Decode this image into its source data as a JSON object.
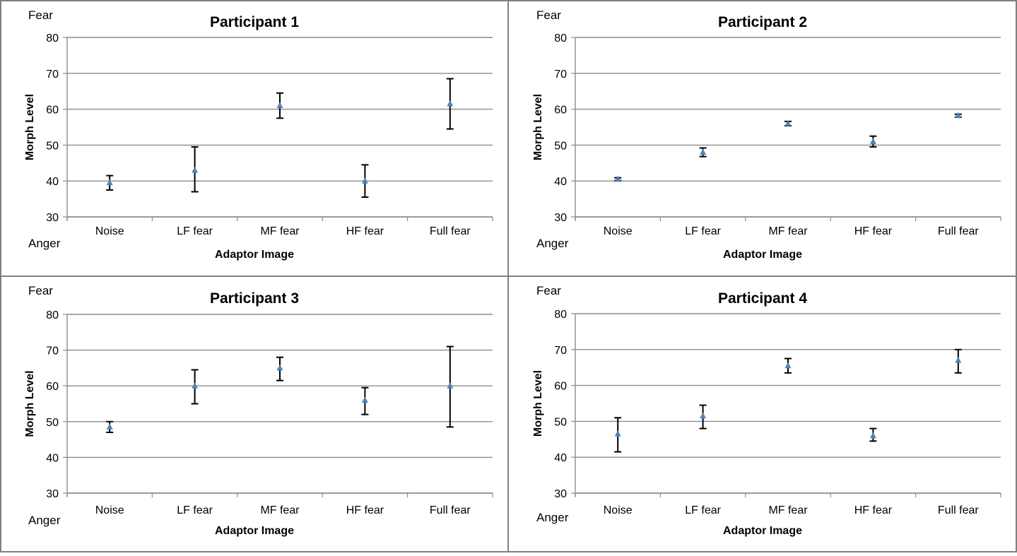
{
  "chart_data": [
    {
      "type": "scatter",
      "title": "Participant 1",
      "xlabel": "Adaptor Image",
      "ylabel": "Morph Level",
      "top_anchor": "Fear",
      "bottom_anchor": "Anger",
      "categories": [
        "Noise",
        "LF fear",
        "MF fear",
        "HF fear",
        "Full fear"
      ],
      "values": [
        39.5,
        43,
        61,
        40,
        61.5
      ],
      "err_low": [
        37.5,
        37,
        57.5,
        35.5,
        54.5
      ],
      "err_high": [
        41.5,
        49.5,
        64.5,
        44.5,
        68.5
      ],
      "ylim": [
        30,
        80
      ],
      "yticks": [
        "30",
        "40",
        "50",
        "60",
        "70",
        "80"
      ],
      "grid": true,
      "marker_color": "#4F81BD"
    },
    {
      "type": "scatter",
      "title": "Participant 2",
      "xlabel": "Adaptor Image",
      "ylabel": "Morph Level",
      "top_anchor": "Fear",
      "bottom_anchor": "Anger",
      "categories": [
        "Noise",
        "LF fear",
        "MF fear",
        "HF fear",
        "Full fear"
      ],
      "values": [
        40.5,
        48,
        56,
        51,
        58.2
      ],
      "err_low": [
        40.1,
        46.8,
        55.4,
        49.5,
        57.8
      ],
      "err_high": [
        40.9,
        49.2,
        56.6,
        52.5,
        58.6
      ],
      "ylim": [
        30,
        80
      ],
      "yticks": [
        "30",
        "40",
        "50",
        "60",
        "70",
        "80"
      ],
      "grid": true,
      "marker_color": "#4F81BD"
    },
    {
      "type": "scatter",
      "title": "Participant 3",
      "xlabel": "Adaptor Image",
      "ylabel": "Morph Level",
      "top_anchor": "Fear",
      "bottom_anchor": "Anger",
      "categories": [
        "Noise",
        "LF fear",
        "MF fear",
        "HF fear",
        "Full fear"
      ],
      "values": [
        48.5,
        60,
        65,
        56,
        60
      ],
      "err_low": [
        47,
        55,
        61.5,
        52,
        48.5
      ],
      "err_high": [
        50,
        64.5,
        68,
        59.5,
        71
      ],
      "ylim": [
        30,
        80
      ],
      "yticks": [
        "30",
        "40",
        "50",
        "60",
        "70",
        "80"
      ],
      "grid": true,
      "marker_color": "#4F81BD"
    },
    {
      "type": "scatter",
      "title": "Participant 4",
      "xlabel": "Adaptor Image",
      "ylabel": "Morph Level",
      "top_anchor": "Fear",
      "bottom_anchor": "Anger",
      "categories": [
        "Noise",
        "LF fear",
        "MF fear",
        "HF fear",
        "Full fear"
      ],
      "values": [
        46.5,
        51.5,
        65.5,
        46,
        67
      ],
      "err_low": [
        41.5,
        48,
        63.5,
        44.5,
        63.5
      ],
      "err_high": [
        51,
        54.5,
        67.5,
        48,
        70
      ],
      "ylim": [
        30,
        80
      ],
      "yticks": [
        "30",
        "40",
        "50",
        "60",
        "70",
        "80"
      ],
      "grid": true,
      "marker_color": "#4F81BD"
    }
  ]
}
